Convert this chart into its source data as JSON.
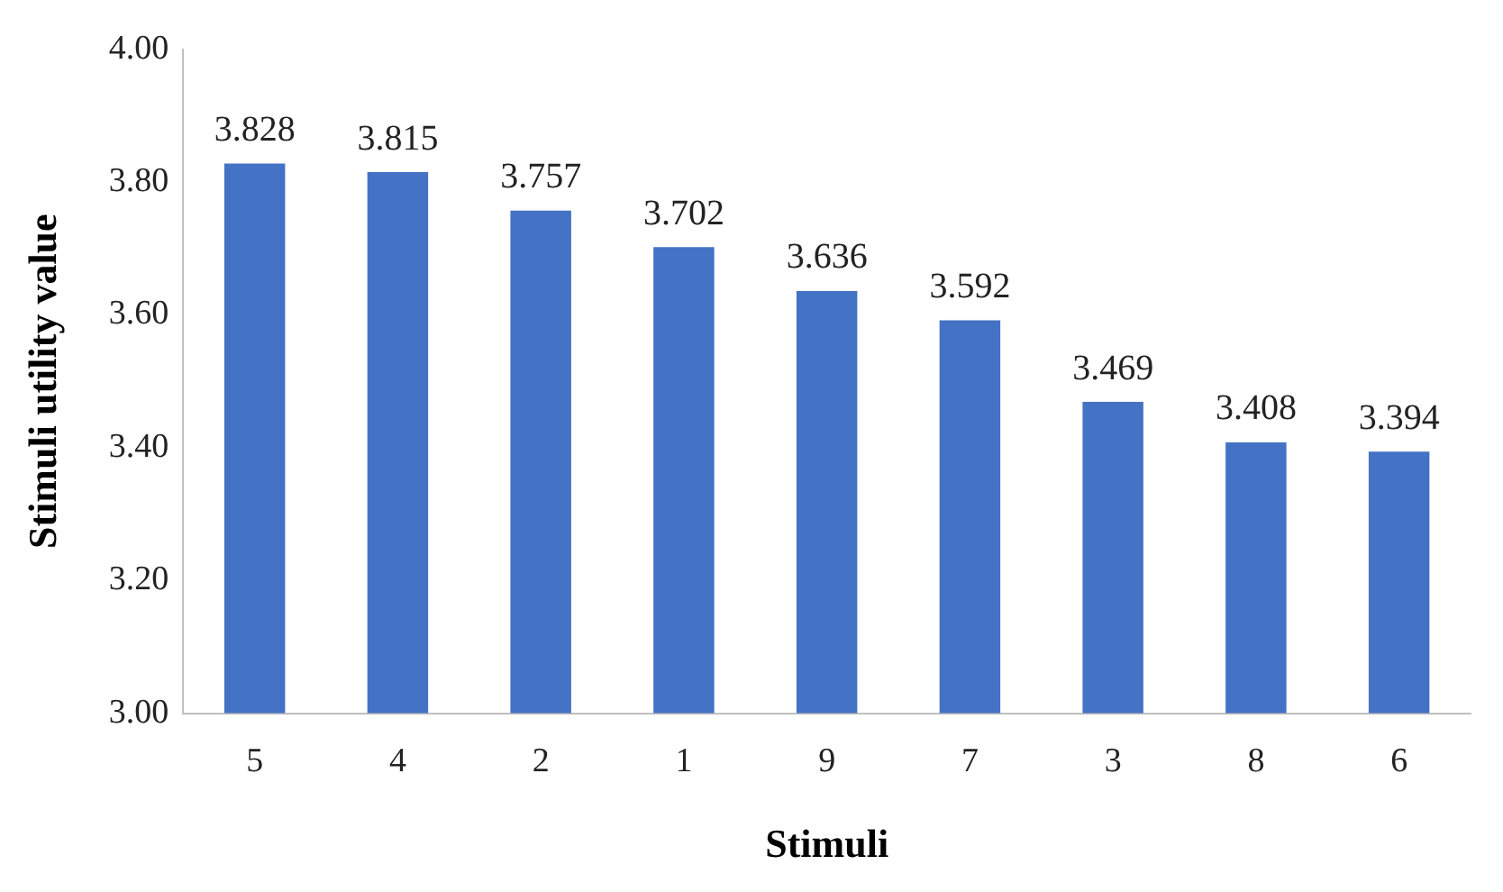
{
  "chart_data": {
    "type": "bar",
    "xlabel": "Stimuli",
    "ylabel": "Stimuli utility value",
    "categories": [
      "5",
      "4",
      "2",
      "1",
      "9",
      "7",
      "3",
      "8",
      "6"
    ],
    "values": [
      3.828,
      3.815,
      3.757,
      3.702,
      3.636,
      3.592,
      3.469,
      3.408,
      3.394
    ],
    "color": "#4472c4",
    "ylim": [
      3,
      4
    ],
    "yticks": [
      {
        "value": 3,
        "label": "3.00"
      },
      {
        "value": 3.2,
        "label": "3.20"
      },
      {
        "value": 3.4,
        "label": "3.40"
      },
      {
        "value": 3.6,
        "label": "3.60"
      },
      {
        "value": 3.8,
        "label": "3.80"
      },
      {
        "value": 4,
        "label": "4.00"
      }
    ],
    "grid": false,
    "legend": false,
    "data_labels": true
  }
}
